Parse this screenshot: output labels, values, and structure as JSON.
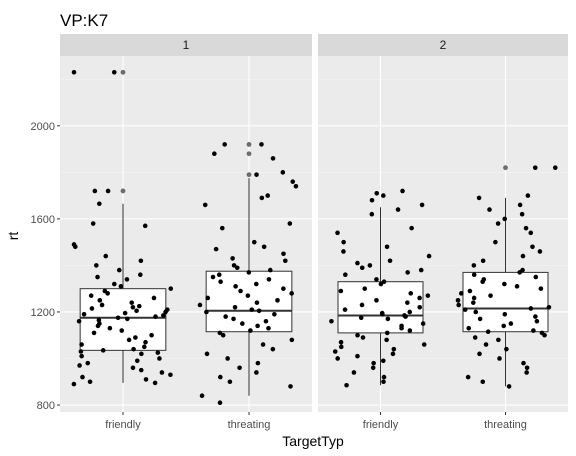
{
  "chart_data": {
    "type": "boxplot-jitter",
    "title": "VP:K7",
    "xlabel": "TargetTyp",
    "ylabel": "rt",
    "ylim": [
      770,
      2300
    ],
    "yticks": [
      800,
      1200,
      1600,
      2000
    ],
    "categories": [
      "friendly",
      "threating"
    ],
    "facets": [
      {
        "label": "1",
        "boxes": [
          {
            "category": "friendly",
            "q1": 1035,
            "median": 1175,
            "q3": 1300,
            "whisker_low": 895,
            "whisker_high": 1665,
            "outliers": [
              1720,
              2230
            ]
          },
          {
            "category": "threating",
            "q1": 1115,
            "median": 1205,
            "q3": 1375,
            "whisker_low": 840,
            "whisker_high": 1775,
            "outliers": [
              1790,
              1880,
              1920
            ]
          }
        ],
        "points": [
          {
            "category": "friendly",
            "values": [
              2230,
              2230,
              1720,
              1720,
              1665,
              1580,
              1570,
              1490,
              1480,
              1440,
              1420,
              1400,
              1380,
              1360,
              1350,
              1340,
              1320,
              1310,
              1300,
              1290,
              1280,
              1270,
              1260,
              1250,
              1240,
              1230,
              1225,
              1220,
              1215,
              1210,
              1205,
              1200,
              1195,
              1190,
              1185,
              1180,
              1175,
              1170,
              1165,
              1160,
              1150,
              1140,
              1130,
              1120,
              1110,
              1100,
              1090,
              1080,
              1070,
              1060,
              1050,
              1040,
              1035,
              1030,
              1025,
              1020,
              1010,
              1000,
              990,
              980,
              970,
              960,
              950,
              940,
              930,
              920,
              910,
              900,
              895,
              890
            ]
          },
          {
            "category": "threating",
            "values": [
              1920,
              1920,
              1880,
              1860,
              1800,
              1790,
              1760,
              1740,
              1700,
              1690,
              1660,
              1580,
              1560,
              1500,
              1480,
              1470,
              1450,
              1430,
              1420,
              1400,
              1390,
              1380,
              1370,
              1360,
              1350,
              1340,
              1330,
              1320,
              1310,
              1300,
              1290,
              1280,
              1270,
              1260,
              1250,
              1240,
              1230,
              1220,
              1210,
              1205,
              1200,
              1190,
              1180,
              1170,
              1160,
              1150,
              1140,
              1130,
              1120,
              1110,
              1100,
              1080,
              1060,
              1040,
              1020,
              1000,
              980,
              960,
              940,
              920,
              900,
              880,
              840,
              810
            ]
          }
        ]
      },
      {
        "label": "2",
        "boxes": [
          {
            "category": "friendly",
            "q1": 1110,
            "median": 1185,
            "q3": 1330,
            "whisker_low": 885,
            "whisker_high": 1650,
            "outliers": []
          },
          {
            "category": "threating",
            "q1": 1115,
            "median": 1215,
            "q3": 1370,
            "whisker_low": 880,
            "whisker_high": 1690,
            "outliers": [
              1820
            ]
          }
        ],
        "points": [
          {
            "category": "friendly",
            "values": [
              1720,
              1710,
              1700,
              1680,
              1660,
              1640,
              1620,
              1560,
              1540,
              1500,
              1480,
              1460,
              1440,
              1420,
              1410,
              1400,
              1390,
              1380,
              1370,
              1360,
              1340,
              1330,
              1320,
              1300,
              1290,
              1280,
              1270,
              1260,
              1250,
              1240,
              1230,
              1220,
              1210,
              1200,
              1195,
              1190,
              1185,
              1180,
              1175,
              1170,
              1160,
              1150,
              1140,
              1130,
              1120,
              1110,
              1100,
              1090,
              1080,
              1070,
              1060,
              1050,
              1040,
              1030,
              1020,
              1010,
              1000,
              990,
              980,
              960,
              940,
              920,
              900,
              885
            ]
          },
          {
            "category": "threating",
            "values": [
              1820,
              1820,
              1700,
              1690,
              1660,
              1640,
              1620,
              1600,
              1580,
              1560,
              1540,
              1500,
              1480,
              1460,
              1440,
              1420,
              1400,
              1380,
              1370,
              1360,
              1350,
              1340,
              1330,
              1320,
              1310,
              1300,
              1290,
              1280,
              1270,
              1260,
              1250,
              1240,
              1230,
              1220,
              1215,
              1210,
              1200,
              1190,
              1180,
              1170,
              1160,
              1150,
              1140,
              1130,
              1120,
              1115,
              1110,
              1100,
              1090,
              1080,
              1060,
              1040,
              1020,
              1000,
              980,
              960,
              940,
              920,
              900,
              880
            ]
          }
        ]
      }
    ],
    "colors": {
      "panel_background": "#ebebeb",
      "grid_major": "#ffffff",
      "grid_minor": "#f2f2f2",
      "strip_background": "#d9d9d9",
      "points": "#000000",
      "box_fill": "#ffffff",
      "box_stroke": "#333333"
    }
  }
}
